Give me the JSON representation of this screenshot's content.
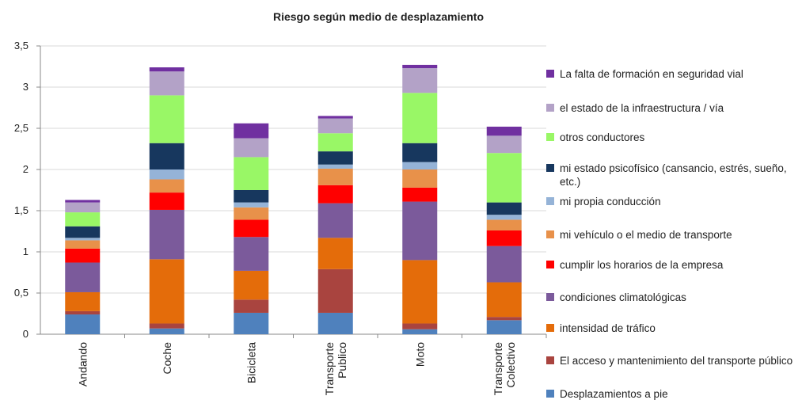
{
  "chart_data": {
    "type": "stacked_bar",
    "title": "Riesgo según medio de desplazamiento",
    "categories": [
      "Andando",
      "Coche",
      "Bicicleta",
      "Transporte Publico",
      "Moto",
      "Transporte Colectivo"
    ],
    "series": [
      {
        "name": "Desplazamientos a pie",
        "color": "#4f81bd",
        "values": [
          0.24,
          0.07,
          0.26,
          0.26,
          0.06,
          0.17
        ]
      },
      {
        "name": "El acceso y mantenimiento del transporte público",
        "color": "#a9443f",
        "values": [
          0.04,
          0.06,
          0.16,
          0.53,
          0.07,
          0.04
        ]
      },
      {
        "name": "intensidad de tráfico",
        "color": "#e46c0a",
        "values": [
          0.23,
          0.78,
          0.35,
          0.38,
          0.77,
          0.42
        ]
      },
      {
        "name": "condiciones climatológicas",
        "color": "#7b5a9b",
        "values": [
          0.36,
          0.6,
          0.41,
          0.42,
          0.71,
          0.44
        ]
      },
      {
        "name": "cumplir los horarios de la empresa",
        "color": "#ff0000",
        "values": [
          0.17,
          0.21,
          0.21,
          0.22,
          0.17,
          0.19
        ]
      },
      {
        "name": "mi vehículo o el medio de transporte",
        "color": "#e8914a",
        "values": [
          0.1,
          0.16,
          0.15,
          0.2,
          0.22,
          0.13
        ]
      },
      {
        "name": "mi propia conducción",
        "color": "#95b3d7",
        "values": [
          0.03,
          0.12,
          0.06,
          0.05,
          0.09,
          0.06
        ]
      },
      {
        "name": "mi estado psicofísico (cansancio, estrés, sueño, etc.)",
        "color": "#17375e",
        "values": [
          0.14,
          0.32,
          0.15,
          0.16,
          0.23,
          0.15
        ]
      },
      {
        "name": "otros conductores",
        "color": "#99f766",
        "values": [
          0.17,
          0.58,
          0.4,
          0.22,
          0.61,
          0.6
        ]
      },
      {
        "name": "el estado de la infraestructura / vía",
        "color": "#b3a2c7",
        "values": [
          0.12,
          0.29,
          0.23,
          0.18,
          0.3,
          0.21
        ]
      },
      {
        "name": "La falta de formación en seguridad vial",
        "color": "#7030a0",
        "values": [
          0.03,
          0.05,
          0.18,
          0.03,
          0.04,
          0.11
        ]
      }
    ],
    "ylim": [
      0,
      3.5
    ],
    "yticks": [
      0,
      {
        "value": 0.5,
        "label": "0,5"
      },
      1,
      {
        "value": 1.5,
        "label": "1,5"
      },
      2,
      {
        "value": 2.5,
        "label": "2,5"
      },
      3,
      {
        "value": 3.5,
        "label": "3,5"
      }
    ],
    "grid": true,
    "legend": "right"
  }
}
